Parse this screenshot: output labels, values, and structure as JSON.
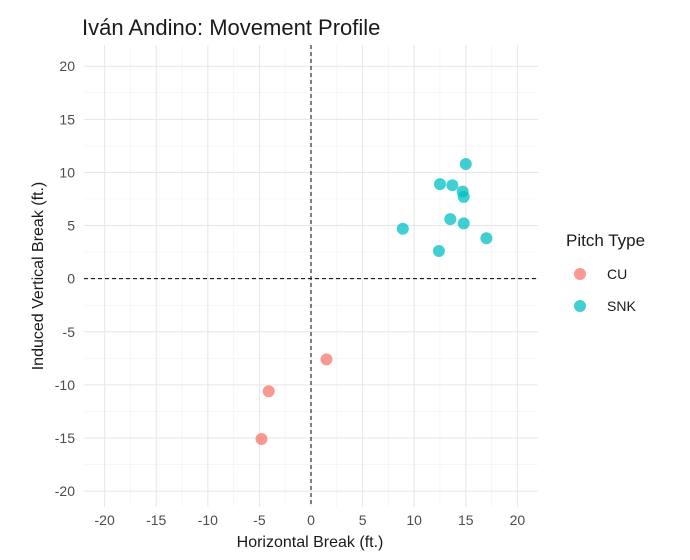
{
  "chart_data": {
    "type": "scatter",
    "title": "Iván Andino: Movement Profile",
    "xlabel": "Horizontal Break (ft.)",
    "ylabel": "Induced Vertical Break (ft.)",
    "xlim": [
      -22,
      22
    ],
    "ylim": [
      -21.5,
      22
    ],
    "xticks": [
      -20,
      -15,
      -10,
      -5,
      0,
      5,
      10,
      15,
      20
    ],
    "yticks": [
      -20,
      -15,
      -10,
      -5,
      0,
      5,
      10,
      15,
      20
    ],
    "grid": true,
    "reference_lines": {
      "x": 0,
      "y": 0,
      "style": "dashed"
    },
    "legend": {
      "title": "Pitch Type",
      "position": "right"
    },
    "series": [
      {
        "name": "CU",
        "color": "#F8766D",
        "points": [
          {
            "x": 1.5,
            "y": -7.6
          },
          {
            "x": -4.1,
            "y": -10.6
          },
          {
            "x": -4.8,
            "y": -15.1
          }
        ]
      },
      {
        "name": "SNK",
        "color": "#00BFC4",
        "points": [
          {
            "x": 15.0,
            "y": 10.8
          },
          {
            "x": 12.5,
            "y": 8.9
          },
          {
            "x": 13.7,
            "y": 8.8
          },
          {
            "x": 14.7,
            "y": 8.2
          },
          {
            "x": 14.8,
            "y": 7.7
          },
          {
            "x": 8.9,
            "y": 4.7
          },
          {
            "x": 13.5,
            "y": 5.6
          },
          {
            "x": 14.8,
            "y": 5.2
          },
          {
            "x": 17.0,
            "y": 3.8
          },
          {
            "x": 12.4,
            "y": 2.6
          }
        ]
      }
    ]
  }
}
